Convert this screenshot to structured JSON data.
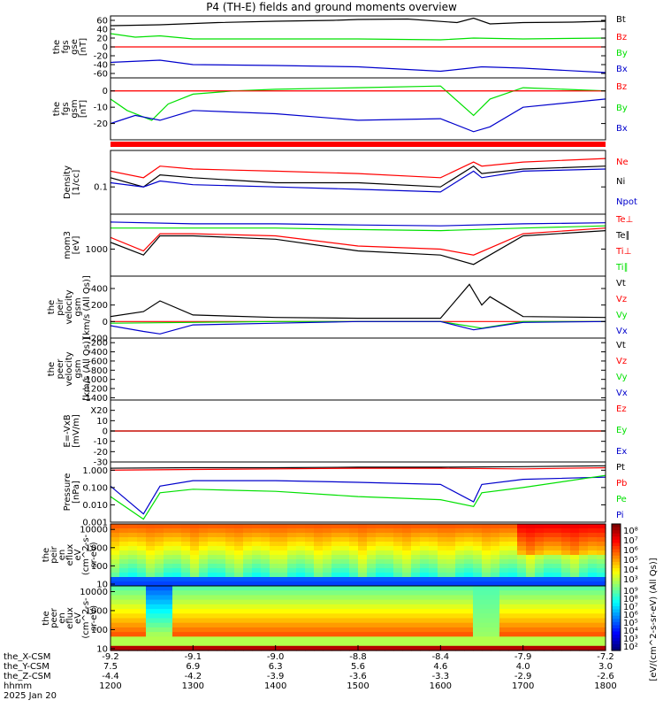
{
  "title": "P4 (TH-E) fields and ground moments overview",
  "colors": {
    "black": "#000000",
    "red": "#ff0000",
    "green": "#00e000",
    "blue": "#0000cc"
  },
  "chart_data": {
    "type": "line",
    "time_axis": {
      "range": [
        1200,
        1800
      ],
      "ticks": [
        1200,
        1300,
        1400,
        1500,
        1600,
        1700,
        1800
      ],
      "rows": [
        {
          "label": "the_X-CSM",
          "values": [
            "-9.2",
            "-9.1",
            "-9.0",
            "-8.8",
            "-8.4",
            "-7.9",
            "-7.2"
          ]
        },
        {
          "label": "the_Y-CSM",
          "values": [
            "7.5",
            "6.9",
            "6.3",
            "5.6",
            "4.6",
            "4.0",
            "3.0"
          ]
        },
        {
          "label": "the_Z-CSM",
          "values": [
            "-4.4",
            "-4.2",
            "-3.9",
            "-3.6",
            "-3.3",
            "-2.9",
            "-2.6"
          ]
        },
        {
          "label": "hhmm",
          "values": [
            "1200",
            "1300",
            "1400",
            "1500",
            "1600",
            "1700",
            "1800"
          ]
        }
      ],
      "date": "2025 Jan 20"
    },
    "panels": [
      {
        "id": "fgs_gse",
        "ylabel": [
          "the",
          "fgs",
          "gse",
          "[nT]"
        ],
        "ylim": [
          -70,
          70
        ],
        "yticks": [
          60,
          40,
          20,
          0,
          -20,
          -40,
          -60
        ],
        "zero_line": true,
        "legend": [
          {
            "name": "Bt",
            "color": "#000000"
          },
          {
            "name": "Bz",
            "color": "#ff0000"
          },
          {
            "name": "By",
            "color": "#00e000"
          },
          {
            "name": "Bx",
            "color": "#0000cc"
          }
        ],
        "series": [
          {
            "name": "Bt",
            "color": "#000000",
            "x": [
              1200,
              1260,
              1330,
              1400,
              1470,
              1500,
              1560,
              1620,
              1640,
              1660,
              1700,
              1760,
              1800
            ],
            "y": [
              48,
              50,
              55,
              58,
              60,
              62,
              63,
              55,
              65,
              52,
              55,
              56,
              58
            ]
          },
          {
            "name": "Bz",
            "color": "#ff0000",
            "x": [
              1200,
              1800
            ],
            "y": [
              0,
              0
            ]
          },
          {
            "name": "By",
            "color": "#00e000",
            "x": [
              1200,
              1230,
              1260,
              1300,
              1400,
              1500,
              1600,
              1640,
              1700,
              1800
            ],
            "y": [
              30,
              22,
              25,
              18,
              18,
              18,
              16,
              20,
              18,
              20
            ]
          },
          {
            "name": "Bx",
            "color": "#0000cc",
            "x": [
              1200,
              1260,
              1300,
              1400,
              1500,
              1600,
              1650,
              1700,
              1800
            ],
            "y": [
              -35,
              -30,
              -40,
              -42,
              -45,
              -55,
              -45,
              -48,
              -58
            ]
          }
        ]
      },
      {
        "id": "fgs_gsm",
        "ylabel": [
          "the",
          "fgs",
          "gsm",
          "[nT]"
        ],
        "ylim": [
          -30,
          8
        ],
        "yticks": [
          0,
          -10,
          -20
        ],
        "zero_line": true,
        "legend": [
          {
            "name": "Bz",
            "color": "#ff0000"
          },
          {
            "name": "By",
            "color": "#00e000"
          },
          {
            "name": "Bx",
            "color": "#0000cc"
          }
        ],
        "series": [
          {
            "name": "Bz",
            "color": "#ff0000",
            "x": [
              1200,
              1800
            ],
            "y": [
              0,
              0
            ]
          },
          {
            "name": "By",
            "color": "#00e000",
            "x": [
              1200,
              1220,
              1250,
              1270,
              1300,
              1350,
              1400,
              1500,
              1600,
              1640,
              1660,
              1700,
              1800
            ],
            "y": [
              -5,
              -12,
              -18,
              -8,
              -2,
              0,
              1,
              2,
              3,
              -15,
              -5,
              2,
              0
            ]
          },
          {
            "name": "Bx",
            "color": "#0000cc",
            "x": [
              1200,
              1230,
              1260,
              1300,
              1400,
              1500,
              1600,
              1640,
              1660,
              1700,
              1800
            ],
            "y": [
              -20,
              -15,
              -18,
              -12,
              -14,
              -18,
              -17,
              -25,
              -22,
              -10,
              -5
            ]
          }
        ]
      },
      {
        "id": "density",
        "ylabel": [
          "Density",
          "[1/cc]"
        ],
        "ylim": [
          0.03,
          0.5
        ],
        "log": true,
        "yticks": [
          0.1
        ],
        "ytick_labels": [
          "0.1"
        ],
        "legend": [
          {
            "name": "Ne",
            "color": "#ff0000"
          },
          {
            "name": "Ni",
            "color": "#000000"
          },
          {
            "name": "Npot",
            "color": "#0000cc"
          }
        ],
        "series": [
          {
            "name": "Ne",
            "color": "#ff0000",
            "x": [
              1200,
              1240,
              1260,
              1300,
              1400,
              1500,
              1600,
              1640,
              1650,
              1700,
              1800
            ],
            "y": [
              0.2,
              0.15,
              0.25,
              0.22,
              0.2,
              0.18,
              0.15,
              0.3,
              0.25,
              0.3,
              0.35
            ]
          },
          {
            "name": "Ni",
            "color": "#000000",
            "x": [
              1200,
              1240,
              1260,
              1300,
              1400,
              1500,
              1600,
              1640,
              1650,
              1700,
              1800
            ],
            "y": [
              0.15,
              0.1,
              0.17,
              0.15,
              0.12,
              0.12,
              0.1,
              0.25,
              0.18,
              0.22,
              0.25
            ]
          },
          {
            "name": "Npot",
            "color": "#0000cc",
            "x": [
              1200,
              1240,
              1260,
              1300,
              1400,
              1500,
              1600,
              1640,
              1650,
              1700,
              1800
            ],
            "y": [
              0.12,
              0.1,
              0.13,
              0.11,
              0.1,
              0.09,
              0.08,
              0.2,
              0.15,
              0.2,
              0.22
            ]
          }
        ]
      },
      {
        "id": "temperature",
        "ylabel": [
          "mom3",
          "[eV]"
        ],
        "ylim": [
          200,
          8000
        ],
        "log": true,
        "yticks": [
          1000
        ],
        "ytick_labels": [
          "1000"
        ],
        "legend": [
          {
            "name": "Te⊥",
            "color": "#ff0000"
          },
          {
            "name": "Te∥",
            "color": "#000000"
          },
          {
            "name": "Ti⊥",
            "color": "#ff0000"
          },
          {
            "name": "Ti∥",
            "color": "#00e000"
          }
        ],
        "series": [
          {
            "name": "Ti",
            "color": "#0000cc",
            "x": [
              1200,
              1300,
              1400,
              1500,
              1600,
              1700,
              1800
            ],
            "y": [
              5000,
              4500,
              4500,
              4200,
              4000,
              4500,
              4800
            ]
          },
          {
            "name": "Ti∥",
            "color": "#00e000",
            "x": [
              1200,
              1300,
              1400,
              1500,
              1600,
              1700,
              1800
            ],
            "y": [
              3500,
              3500,
              3500,
              3200,
              3000,
              3500,
              4000
            ]
          },
          {
            "name": "Te⊥",
            "color": "#ff0000",
            "x": [
              1200,
              1240,
              1260,
              1300,
              1400,
              1500,
              1600,
              1640,
              1700,
              1800
            ],
            "y": [
              2000,
              900,
              2500,
              2500,
              2200,
              1200,
              1000,
              700,
              2500,
              3500
            ]
          },
          {
            "name": "Te∥",
            "color": "#000000",
            "x": [
              1200,
              1240,
              1260,
              1300,
              1400,
              1500,
              1600,
              1640,
              1700,
              1800
            ],
            "y": [
              1500,
              700,
              2200,
              2200,
              1800,
              900,
              700,
              400,
              2200,
              3000
            ]
          }
        ]
      },
      {
        "id": "peir_velocity",
        "ylabel": [
          "the",
          "peir",
          "velocity",
          "gsm",
          "[km/s (All Qs)]"
        ],
        "ylim": [
          -200,
          550
        ],
        "yticks": [
          400,
          200,
          0,
          -200
        ],
        "legend": [
          {
            "name": "Vt",
            "color": "#000000"
          },
          {
            "name": "Vz",
            "color": "#ff0000"
          },
          {
            "name": "Vy",
            "color": "#00e000"
          },
          {
            "name": "Vx",
            "color": "#0000cc"
          }
        ],
        "series": [
          {
            "name": "Vt",
            "color": "#000000",
            "x": [
              1200,
              1240,
              1260,
              1300,
              1400,
              1500,
              1600,
              1635,
              1650,
              1660,
              1700,
              1800
            ],
            "y": [
              60,
              120,
              250,
              80,
              50,
              40,
              40,
              450,
              200,
              300,
              60,
              50
            ]
          },
          {
            "name": "Vz",
            "color": "#ff0000",
            "x": [
              1200,
              1800
            ],
            "y": [
              0,
              0
            ]
          },
          {
            "name": "Vy",
            "color": "#00e000",
            "x": [
              1200,
              1300,
              1400,
              1500,
              1600,
              1650,
              1700,
              1800
            ],
            "y": [
              -20,
              -10,
              0,
              0,
              0,
              -80,
              0,
              0
            ]
          },
          {
            "name": "Vx",
            "color": "#0000cc",
            "x": [
              1200,
              1240,
              1260,
              1300,
              1400,
              1500,
              1600,
              1640,
              1700,
              1800
            ],
            "y": [
              -50,
              -120,
              -150,
              -40,
              -20,
              0,
              0,
              -100,
              -10,
              0
            ]
          }
        ]
      },
      {
        "id": "peer_velocity",
        "ylabel": [
          "the",
          "peer",
          "velocity",
          "gsm",
          "[km/s (All Qs)]"
        ],
        "ylim": [
          -1450,
          -100
        ],
        "yticks": [
          -200,
          -400,
          -600,
          -800,
          -1000,
          -1200,
          -1400
        ],
        "legend": [
          {
            "name": "Vt",
            "color": "#000000"
          },
          {
            "name": "Vz",
            "color": "#ff0000"
          },
          {
            "name": "Vy",
            "color": "#00e000"
          },
          {
            "name": "Vx",
            "color": "#0000cc"
          }
        ],
        "series": []
      },
      {
        "id": "efield",
        "ylabel": [
          "E=-VxB",
          "[mV/m]"
        ],
        "ylim": [
          -30,
          30
        ],
        "yticks": [
          20,
          10,
          0,
          -10,
          -20,
          -30
        ],
        "ytick_labels": [
          "X20",
          "10",
          "0",
          "-10",
          "-20",
          "-30"
        ],
        "legend": [
          {
            "name": "Ez",
            "color": "#ff0000"
          },
          {
            "name": "Ey",
            "color": "#00e000"
          },
          {
            "name": "Ex",
            "color": "#0000cc"
          }
        ],
        "series": [
          {
            "name": "Ex",
            "color": "#0000cc",
            "x": [
              1200,
              1800
            ],
            "y": [
              0,
              0
            ]
          },
          {
            "name": "Ey",
            "color": "#00e000",
            "x": [
              1200,
              1800
            ],
            "y": [
              0,
              0
            ]
          },
          {
            "name": "Ez",
            "color": "#ff0000",
            "x": [
              1200,
              1800
            ],
            "y": [
              0,
              0
            ]
          }
        ]
      },
      {
        "id": "pressure",
        "ylabel": [
          "Pressure",
          "[nPa]"
        ],
        "ylim": [
          0.001,
          3
        ],
        "log": true,
        "yticks": [
          1.0,
          0.1,
          0.01,
          0.001
        ],
        "ytick_labels": [
          "1.000",
          "0.100",
          "0.010",
          "0.001"
        ],
        "legend": [
          {
            "name": "Pt",
            "color": "#000000"
          },
          {
            "name": "Pb",
            "color": "#ff0000"
          },
          {
            "name": "Pe",
            "color": "#00e000"
          },
          {
            "name": "Pi",
            "color": "#0000cc"
          }
        ],
        "series": [
          {
            "name": "Pt",
            "color": "#000000",
            "x": [
              1200,
              1300,
              1400,
              1500,
              1600,
              1700,
              1800
            ],
            "y": [
              1.3,
              1.4,
              1.4,
              1.5,
              1.5,
              1.6,
              1.8
            ]
          },
          {
            "name": "Pb",
            "color": "#ff0000",
            "x": [
              1200,
              1300,
              1400,
              1500,
              1600,
              1700,
              1800
            ],
            "y": [
              1.0,
              1.1,
              1.2,
              1.3,
              1.3,
              1.2,
              1.4
            ]
          },
          {
            "name": "Pi",
            "color": "#0000cc",
            "x": [
              1200,
              1240,
              1260,
              1300,
              1400,
              1500,
              1600,
              1640,
              1650,
              1700,
              1800
            ],
            "y": [
              0.12,
              0.003,
              0.12,
              0.25,
              0.25,
              0.2,
              0.15,
              0.015,
              0.15,
              0.3,
              0.4
            ]
          },
          {
            "name": "Pe",
            "color": "#00e000",
            "x": [
              1200,
              1240,
              1260,
              1300,
              1400,
              1500,
              1600,
              1640,
              1650,
              1700,
              1800
            ],
            "y": [
              0.03,
              0.0015,
              0.05,
              0.08,
              0.06,
              0.03,
              0.02,
              0.008,
              0.05,
              0.1,
              0.5
            ]
          }
        ]
      }
    ],
    "spectrograms": [
      {
        "id": "peir_eflux",
        "ylabel": [
          "the",
          "peir",
          "en",
          "eflux",
          "eV",
          "(cm^2-s-",
          "sr-eV)"
        ],
        "yticks": [
          10000,
          1000,
          100,
          10
        ],
        "ytick_labels": [
          "10000",
          "1000",
          "100",
          "10"
        ]
      },
      {
        "id": "peer_eflux",
        "ylabel": [
          "the",
          "peer",
          "en",
          "eflux",
          "eV",
          "(cm^2-s-",
          "sr-eV)"
        ],
        "yticks": [
          10000,
          1000,
          100,
          10
        ],
        "ytick_labels": [
          "10000",
          "1000",
          "100",
          "10"
        ]
      }
    ],
    "colorbar": {
      "label": "[eV/(cm^2-s-sr-eV) (All Qs)]",
      "peir_ticks": [
        "10⁸",
        "10⁷",
        "10⁶",
        "10⁵",
        "10⁴",
        "10³"
      ],
      "peer_ticks": [
        "10⁹",
        "10⁸",
        "10⁷",
        "10⁶",
        "10⁵",
        "10⁴",
        "10³",
        "10²"
      ]
    }
  }
}
